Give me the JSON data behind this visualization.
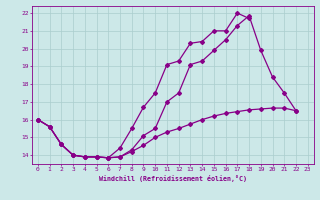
{
  "xlabel": "Windchill (Refroidissement éolien,°C)",
  "background_color": "#cce8e8",
  "grid_color": "#aacece",
  "line_color": "#880088",
  "xlim": [
    -0.5,
    23.5
  ],
  "ylim": [
    13.5,
    22.4
  ],
  "yticks": [
    14,
    15,
    16,
    17,
    18,
    19,
    20,
    21,
    22
  ],
  "xticks": [
    0,
    1,
    2,
    3,
    4,
    5,
    6,
    7,
    8,
    9,
    10,
    11,
    12,
    13,
    14,
    15,
    16,
    17,
    18,
    19,
    20,
    21,
    22,
    23
  ],
  "series_upper_x": [
    0,
    1,
    2,
    3,
    4,
    5,
    6,
    7,
    8,
    9,
    10,
    11,
    12,
    13,
    14,
    15,
    16,
    17,
    18
  ],
  "series_upper_y": [
    16.0,
    15.6,
    14.6,
    14.0,
    13.9,
    13.9,
    13.85,
    14.4,
    15.5,
    16.7,
    17.5,
    19.1,
    19.3,
    20.3,
    20.4,
    21.0,
    21.0,
    22.0,
    21.7
  ],
  "series_mid_x": [
    0,
    1,
    2,
    3,
    4,
    5,
    6,
    7,
    8,
    9,
    10,
    11,
    12,
    13,
    14,
    15,
    16,
    17,
    18,
    19,
    20,
    21,
    22
  ],
  "series_mid_y": [
    16.0,
    15.6,
    14.6,
    14.0,
    13.9,
    13.9,
    13.85,
    13.9,
    14.3,
    15.1,
    15.5,
    17.0,
    17.5,
    19.1,
    19.3,
    19.9,
    20.5,
    21.3,
    21.85,
    19.9,
    18.4,
    17.5,
    16.5
  ],
  "series_low_x": [
    0,
    1,
    2,
    3,
    4,
    5,
    6,
    7,
    8,
    9,
    10,
    11,
    12,
    13,
    14,
    15,
    16,
    17,
    18,
    19,
    20,
    21,
    22
  ],
  "series_low_y": [
    16.0,
    15.6,
    14.6,
    14.0,
    13.9,
    13.9,
    13.85,
    13.9,
    14.2,
    14.55,
    15.0,
    15.3,
    15.5,
    15.75,
    16.0,
    16.2,
    16.35,
    16.45,
    16.55,
    16.6,
    16.65,
    16.65,
    16.5
  ]
}
